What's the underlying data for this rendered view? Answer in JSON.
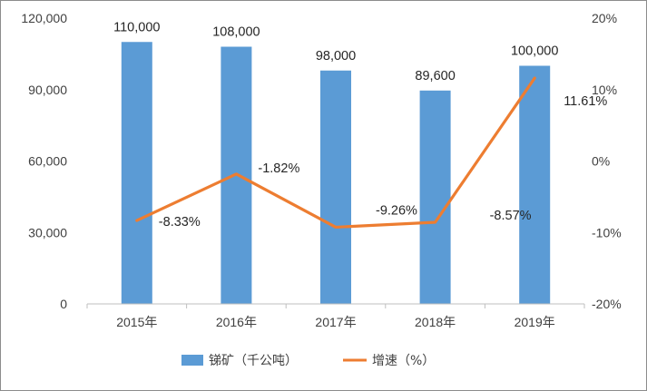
{
  "chart_data": {
    "type": "bar",
    "categories": [
      "2015年",
      "2016年",
      "2017年",
      "2018年",
      "2019年"
    ],
    "series": [
      {
        "name": "锑矿（千公吨）",
        "type": "bar",
        "axis": "left",
        "color": "#5B9BD5",
        "values": [
          110000,
          108000,
          98000,
          89600,
          100000
        ],
        "labels": [
          "110,000",
          "108,000",
          "98,000",
          "89,600",
          "100,000"
        ]
      },
      {
        "name": "增速（%）",
        "type": "line",
        "axis": "right",
        "color": "#ED7D31",
        "values": [
          -8.33,
          -1.82,
          -9.26,
          -8.57,
          11.61
        ],
        "labels": [
          "-8.33%",
          "-1.82%",
          "-9.26%",
          "-8.57%",
          "11.61%"
        ]
      }
    ],
    "left_axis": {
      "min": 0,
      "max": 120000,
      "ticks": [
        0,
        30000,
        60000,
        90000,
        120000
      ],
      "tick_labels": [
        "0",
        "30,000",
        "60,000",
        "90,000",
        "120,000"
      ]
    },
    "right_axis": {
      "min": -20,
      "max": 20,
      "ticks": [
        -20,
        -10,
        0,
        10,
        20
      ],
      "tick_labels": [
        "-20%",
        "-10%",
        "0%",
        "10%",
        "20%"
      ]
    },
    "legend": {
      "placement": "bottom"
    },
    "grid": false
  }
}
